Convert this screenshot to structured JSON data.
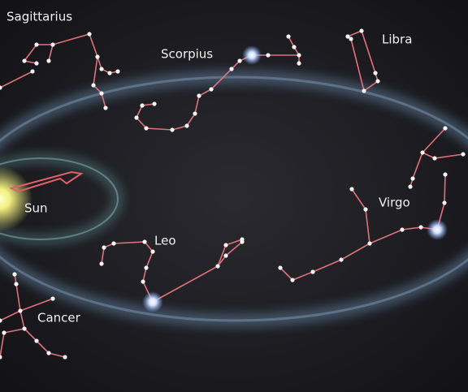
{
  "labels": [
    "Sagittarius",
    "Scorpius",
    "Libra",
    "Sun",
    "Virgo",
    "Leo",
    "Cancer"
  ]
}
